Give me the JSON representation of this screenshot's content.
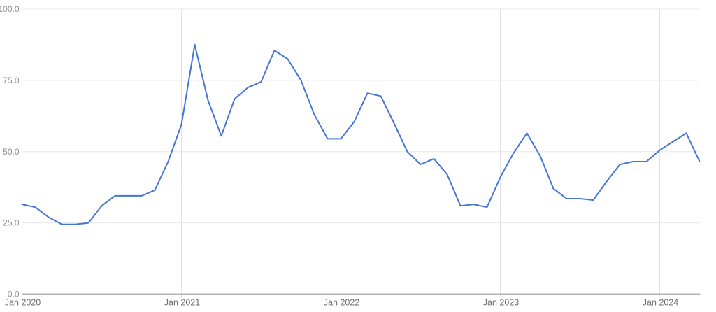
{
  "chart_data": {
    "type": "line",
    "title": "",
    "xlabel": "",
    "ylabel": "",
    "x": [
      "2020-01",
      "2020-02",
      "2020-03",
      "2020-04",
      "2020-05",
      "2020-06",
      "2020-07",
      "2020-08",
      "2020-09",
      "2020-10",
      "2020-11",
      "2020-12",
      "2021-01",
      "2021-02",
      "2021-03",
      "2021-04",
      "2021-05",
      "2021-06",
      "2021-07",
      "2021-08",
      "2021-09",
      "2021-10",
      "2021-11",
      "2021-12",
      "2022-01",
      "2022-02",
      "2022-03",
      "2022-04",
      "2022-05",
      "2022-06",
      "2022-07",
      "2022-08",
      "2022-09",
      "2022-10",
      "2022-11",
      "2022-12",
      "2023-01",
      "2023-02",
      "2023-03",
      "2023-04",
      "2023-05",
      "2023-06",
      "2023-07",
      "2023-08",
      "2023-09",
      "2023-10",
      "2023-11",
      "2023-12",
      "2024-01",
      "2024-02",
      "2024-03",
      "2024-04"
    ],
    "series": [
      {
        "name": "interest-over-time",
        "values": [
          31.5,
          30.5,
          27,
          24.5,
          24.5,
          25,
          31,
          34.5,
          34.5,
          34.5,
          36.5,
          46.5,
          59.5,
          87.5,
          68,
          55.5,
          68.5,
          72.5,
          74.5,
          85.5,
          82.5,
          75,
          63,
          54.5,
          54.5,
          60.5,
          70.5,
          69.5,
          60,
          50,
          45.5,
          47.5,
          42,
          31,
          31.5,
          30.5,
          41,
          49.5,
          56.5,
          48.5,
          37,
          33.5,
          33.5,
          33,
          39.5,
          45.5,
          46.5,
          46.5,
          50.5,
          53.5,
          56.5,
          46.5
        ]
      }
    ],
    "ylim": [
      0,
      100
    ],
    "yticks": [
      0,
      25,
      50,
      75,
      100
    ],
    "ytick_labels": [
      "0.0",
      "25.0",
      "50.0",
      "75.0",
      "100.0"
    ],
    "xtick_positions": [
      0,
      12,
      24,
      36,
      48
    ],
    "xtick_labels": [
      "Jan 2020",
      "Jan 2021",
      "Jan 2022",
      "Jan 2023",
      "Jan 2024"
    ],
    "grid": true,
    "legend": "none",
    "colors": {
      "line": "#4575d5",
      "grid": "#e8e8e8",
      "vgrid": "#e2e2e2",
      "axis_line": "#b5b5b5",
      "left_border": "#dedede",
      "ytick_label": "#8f8f8f",
      "xtick_label": "#6f6f6f",
      "background": "#ffffff"
    }
  }
}
